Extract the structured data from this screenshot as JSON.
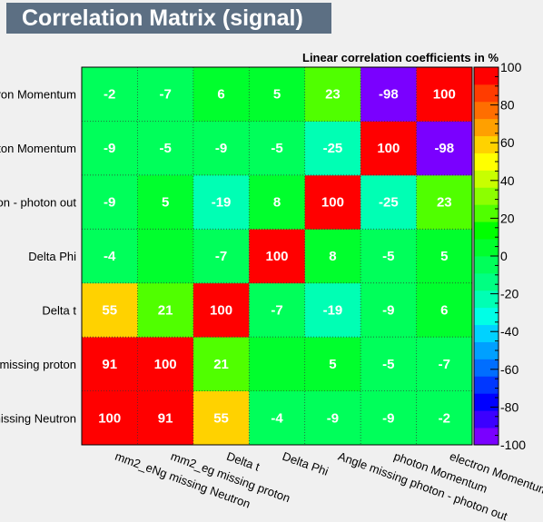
{
  "title": "Correlation Matrix (signal)",
  "chart_data": {
    "type": "heatmap",
    "subtitle": "Linear correlation coefficients in %",
    "variables": [
      "mm2_eNg missing Neutron",
      "mm2_eg missing proton",
      "Delta t",
      "Delta Phi",
      "Angle missing photon - photon out",
      "photon Momentum",
      "electron Momentum"
    ],
    "matrix": [
      [
        100,
        91,
        55,
        -4,
        -9,
        -9,
        -2
      ],
      [
        91,
        100,
        21,
        0,
        5,
        -5,
        -7
      ],
      [
        55,
        21,
        100,
        -7,
        -19,
        -9,
        6
      ],
      [
        -4,
        0,
        -7,
        100,
        8,
        -5,
        5
      ],
      [
        -9,
        5,
        -19,
        8,
        100,
        -25,
        23
      ],
      [
        -9,
        -5,
        -9,
        -5,
        -25,
        100,
        -98
      ],
      [
        -2,
        -7,
        6,
        5,
        23,
        -98,
        100
      ]
    ],
    "hidden_zero_labels": true,
    "colorbar": {
      "range": [
        -100,
        100
      ],
      "ticks": [
        100,
        80,
        60,
        40,
        20,
        0,
        -20,
        -40,
        -60,
        -80,
        -100
      ],
      "colors": [
        "#7a00ff",
        "#3c00ff",
        "#0000ff",
        "#0037ff",
        "#006eff",
        "#00a0ff",
        "#00d2ff",
        "#00ffe6",
        "#00ffb4",
        "#00ff82",
        "#00ff5a",
        "#00ff2d",
        "#00ff00",
        "#50ff00",
        "#8cff00",
        "#c8ff00",
        "#ffff00",
        "#ffd200",
        "#ffa000",
        "#ff6e00",
        "#ff3c00",
        "#ff0000"
      ]
    },
    "grid": true,
    "legend": "colorbar-right"
  }
}
